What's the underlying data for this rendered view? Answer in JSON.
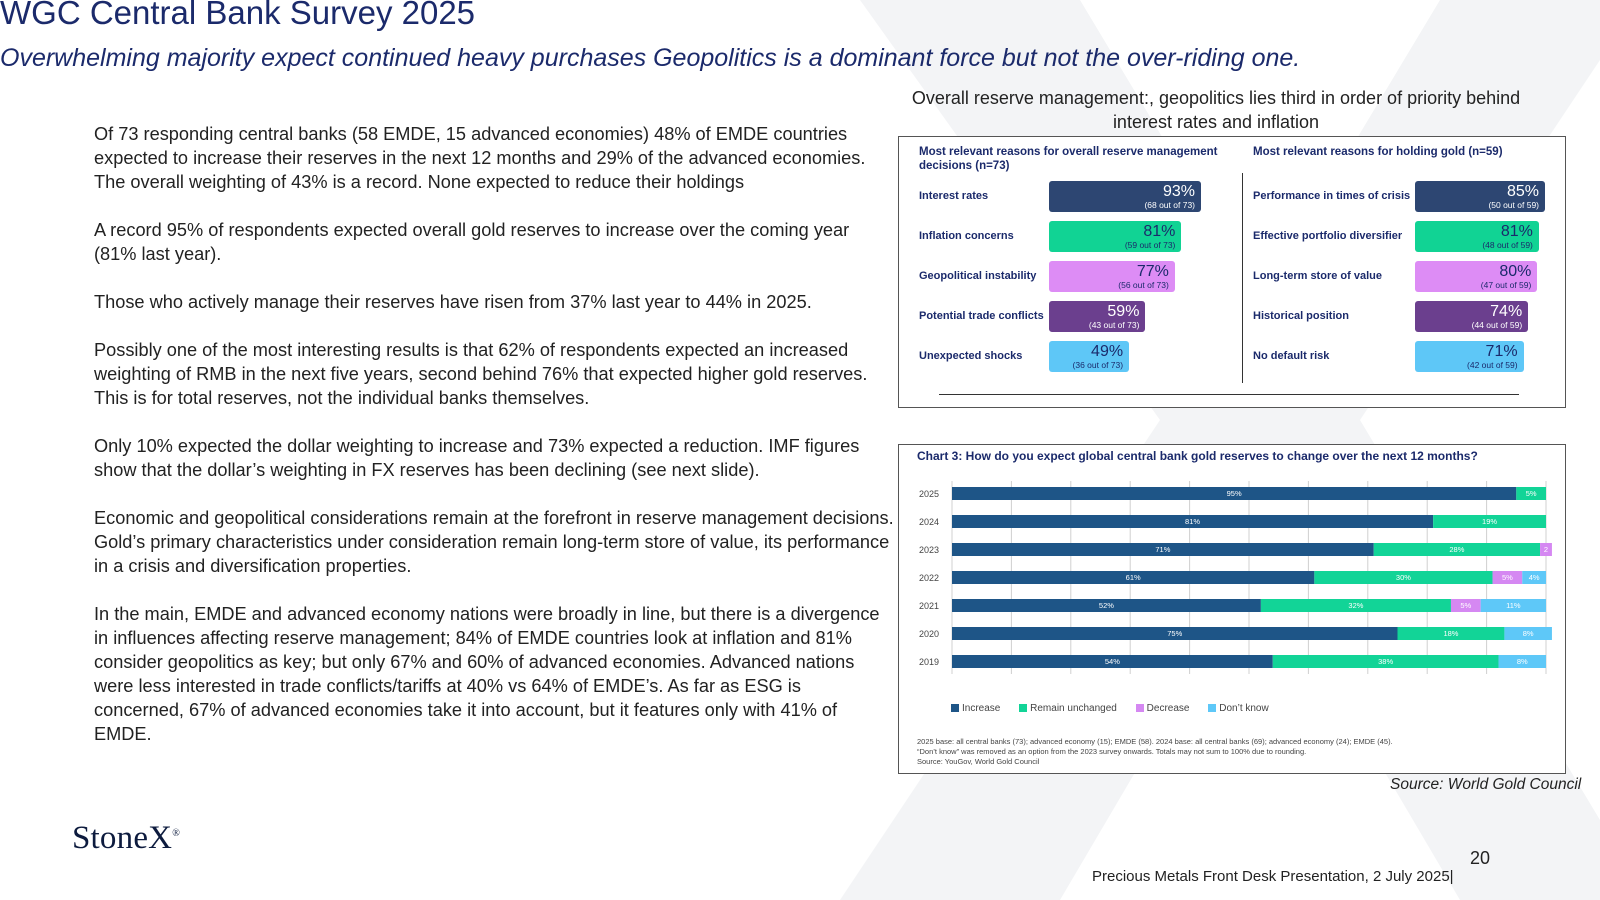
{
  "header": {
    "title": "WGC Central Bank Survey 2025",
    "subtitle": "Overwhelming majority expect continued heavy purchases  Geopolitics is a dominant force but not the over-riding one."
  },
  "body": {
    "paragraphs": [
      "Of 73 responding central banks (58 EMDE, 15 advanced economies) 48% of EMDE countries expected to increase their reserves in the next 12 months and 29% of the advanced economies.  The overall weighting of 43% is a record. None expected to reduce their holdings",
      "A record 95% of respondents expected overall gold reserves to increase over the coming year (81% last year).",
      "Those who actively manage their reserves have risen from 37% last year to 44% in 2025.",
      "Possibly one of the most interesting results is that 62% of respondents expected an increased weighting of RMB in the next five years, second behind 76% that expected higher gold reserves.   This is for total reserves, not the individual banks themselves.",
      "Only 10% expected the dollar weighting to increase and 73% expected a reduction.  IMF figures show that the dollar’s weighting in FX reserves has been declining (see next slide).",
      "Economic and geopolitical considerations remain at the forefront in reserve management decisions.  Gold’s primary characteristics under consideration remain long-term store of value, its performance in a crisis and diversification properties.",
      "In the main, EMDE and advanced economy nations were broadly in line, but there is a divergence in influences affecting reserve management;  84% of EMDE countries look at inflation and 81% consider geopolitics as key; but only 67% and 60% of advanced economies. Advanced nations were less interested in trade conflicts/tariffs at 40% vs 64% of EMDE’s. As far as ESG is concerned, 67% of advanced economies take it into account, but it features only with 41% of EMDE."
    ]
  },
  "reserve_caption": "Overall reserve management:, geopolitics lies third in order of priority behind interest rates and inflation",
  "chart_data": [
    {
      "type": "bar",
      "title": "Most relevant reasons for overall reserve management decisions (n=73)",
      "categories": [
        "Interest rates",
        "Inflation concerns",
        "Geopolitical instability",
        "Potential trade conflicts",
        "Unexpected shocks"
      ],
      "values": [
        93,
        81,
        77,
        59,
        49
      ],
      "labels": [
        "93%",
        "81%",
        "77%",
        "59%",
        "49%"
      ],
      "counts": [
        "(68 out of 73)",
        "(59 out of 73)",
        "(56 out of 73)",
        "(43 out of 73)",
        "(36 out of 73)"
      ],
      "colors": [
        "#2d4672",
        "#11d394",
        "#dd8cf5",
        "#6b3f8e",
        "#5ec7f7"
      ]
    },
    {
      "type": "bar",
      "title": "Most relevant reasons for holding gold (n=59)",
      "categories": [
        "Performance in times of crisis",
        "Effective portfolio diversifier",
        "Long-term store of value",
        "Historical position",
        "No default risk"
      ],
      "values": [
        85,
        81,
        80,
        74,
        71
      ],
      "labels": [
        "85%",
        "81%",
        "80%",
        "74%",
        "71%"
      ],
      "counts": [
        "(50 out of 59)",
        "(48 out of 59)",
        "(47 out of 59)",
        "(44 out of 59)",
        "(42 out of 59)"
      ],
      "colors": [
        "#2d4672",
        "#11d394",
        "#dd8cf5",
        "#6b3f8e",
        "#5ec7f7"
      ]
    },
    {
      "type": "bar",
      "orientation": "horizontal-stacked",
      "title": "Chart 3: How do you expect global central bank gold reserves to change over the next 12 months?",
      "categories": [
        "2025",
        "2024",
        "2023",
        "2022",
        "2021",
        "2020",
        "2019"
      ],
      "xlim": [
        0,
        100
      ],
      "grid": true,
      "legend": "bottom-left",
      "series": [
        {
          "name": "Increase",
          "color": "#1e5587",
          "values": [
            95,
            81,
            71,
            61,
            52,
            75,
            54
          ],
          "labels": [
            "95%",
            "81%",
            "71%",
            "61%",
            "52%",
            "75%",
            "54%"
          ]
        },
        {
          "name": "Remain unchanged",
          "color": "#12d497",
          "values": [
            5,
            19,
            28,
            30,
            32,
            18,
            38
          ],
          "labels": [
            "5%",
            "19%",
            "28%",
            "30%",
            "32%",
            "18%",
            "38%"
          ]
        },
        {
          "name": "Decrease",
          "color": "#d588f2",
          "values": [
            0,
            0,
            2,
            5,
            5,
            0,
            0
          ],
          "labels": [
            "",
            "",
            "2",
            "5%",
            "5%",
            "",
            ""
          ]
        },
        {
          "name": "Don’t know",
          "color": "#5ec8f8",
          "values": [
            0,
            0,
            0,
            4,
            11,
            8,
            8
          ],
          "labels": [
            "",
            "",
            "",
            "4%",
            "11%",
            "8%",
            "8%"
          ]
        }
      ],
      "notes": [
        "2025 base: all central banks (73); advanced economy (15); EMDE (58). 2024 base: all central banks (69); advanced economy (24); EMDE (45).",
        "“Don’t know” was removed as an option from the 2023 survey onwards. Totals may not sum to 100% due to rounding.",
        "Source: YouGov, World Gold Council"
      ]
    }
  ],
  "source_note": "Source: World Gold Council",
  "footer": {
    "logo_text": "StoneX",
    "logo_mark": "®",
    "page_number": "20",
    "presentation": "Precious Metals Front Desk Presentation, 2 July 2025|"
  },
  "colors": {
    "title": "#1b2a6b",
    "watermark": "#f3f4f6"
  }
}
